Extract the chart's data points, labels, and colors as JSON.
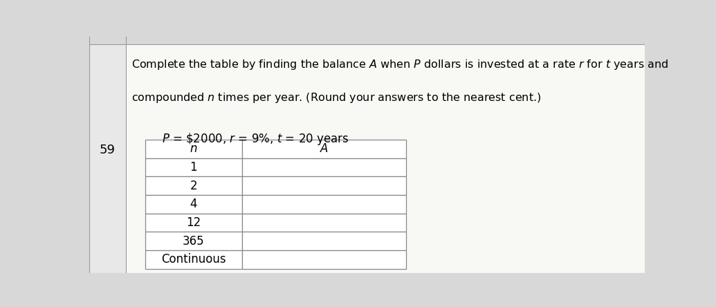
{
  "title_line1": "Complete the table by finding the balance $A$ when $P$ dollars is invested at a rate $r$ for $t$ years and",
  "title_line2": "compounded $n$ times per year. (Round your answers to the nearest cent.)",
  "subtitle": "$P$ = $2000, $r$ = 9%, $t$ = 20 years",
  "col_headers": [
    "$n$",
    "$A$"
  ],
  "rows": [
    "1",
    "2",
    "4",
    "12",
    "365",
    "Continuous"
  ],
  "page_number": "59",
  "bg_color": "#d8d8d8",
  "content_bg": "#f5f5f5",
  "table_bg": "#ffffff",
  "border_color": "#888888",
  "content_border": "#aaaaaa",
  "font_size_title": 11.5,
  "font_size_subtitle": 12,
  "font_size_table": 12,
  "font_size_page": 13
}
